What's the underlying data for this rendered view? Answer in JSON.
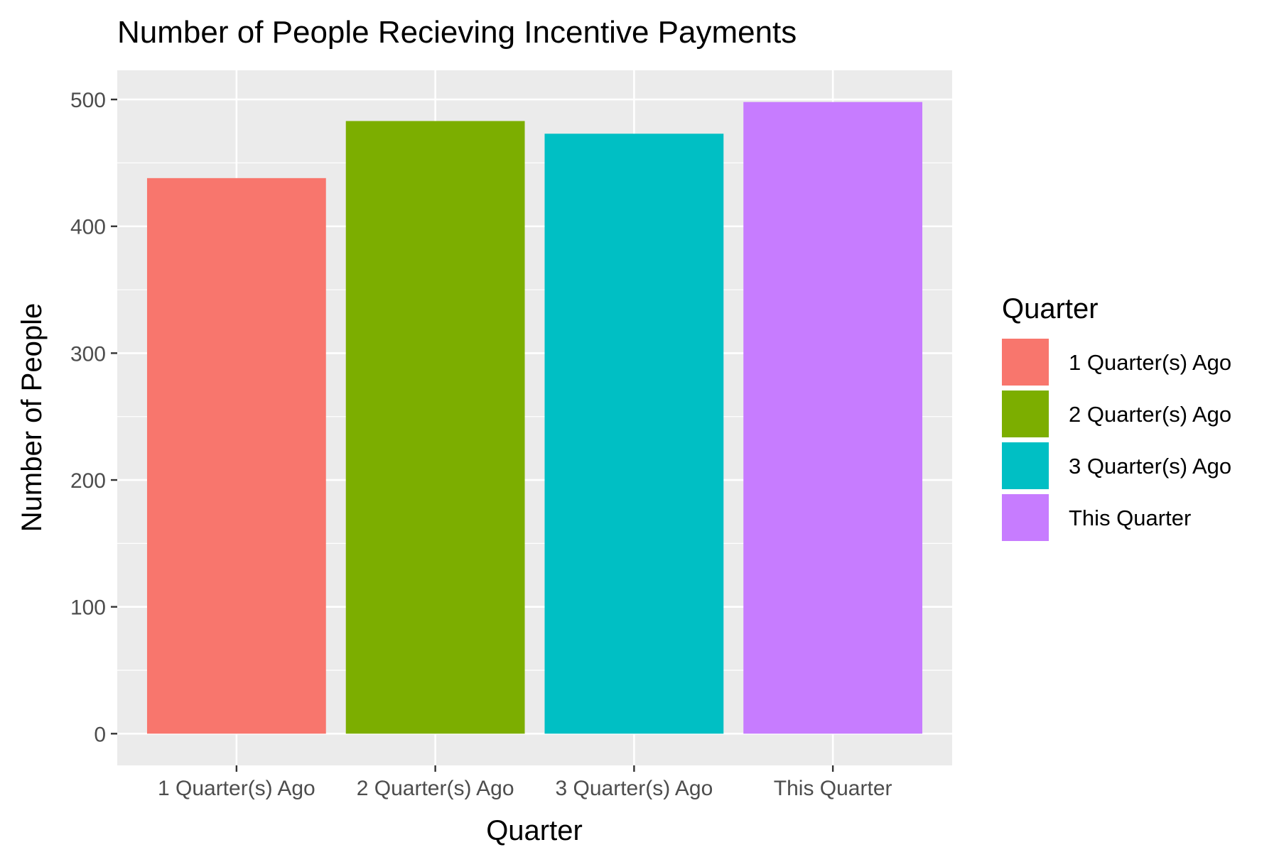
{
  "chart_data": {
    "type": "bar",
    "title": "Number of People Recieving Incentive Payments",
    "xlabel": "Quarter",
    "ylabel": "Number of People",
    "categories": [
      "1 Quarter(s) Ago",
      "2 Quarter(s) Ago",
      "3 Quarter(s) Ago",
      "This Quarter"
    ],
    "values": [
      438,
      483,
      473,
      498
    ],
    "colors": [
      "#F8766D",
      "#7CAE00",
      "#00BFC4",
      "#C77CFF"
    ],
    "ylim": [
      -25,
      523
    ],
    "yticks": [
      0,
      100,
      200,
      300,
      400,
      500
    ],
    "grid": true,
    "panel_background": "#EBEBEB",
    "legend": {
      "title": "Quarter",
      "placement": "right",
      "items": [
        "1 Quarter(s) Ago",
        "2 Quarter(s) Ago",
        "3 Quarter(s) Ago",
        "This Quarter"
      ]
    }
  }
}
